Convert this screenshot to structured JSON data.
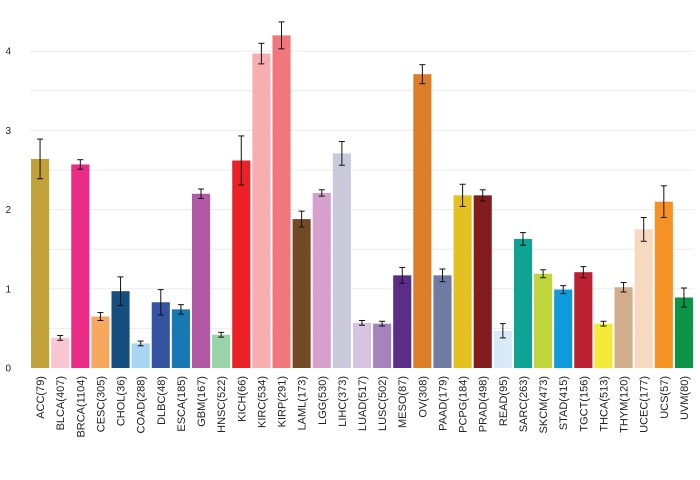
{
  "chart_data": {
    "type": "bar",
    "title": "",
    "xlabel": "",
    "ylabel": "",
    "ylim": [
      0,
      4.4
    ],
    "yticks": [
      0,
      1,
      2,
      3,
      4
    ],
    "grid": true,
    "legend": "none",
    "categories": [
      "ACC(79)",
      "BLCA(407)",
      "BRCA(1104)",
      "CESC(305)",
      "CHOL(36)",
      "COAD(288)",
      "DLBC(48)",
      "ESCA(185)",
      "GBM(167)",
      "HNSC(522)",
      "KICH(66)",
      "KIRC(534)",
      "KIRP(291)",
      "LAML(173)",
      "LGG(530)",
      "LIHC(373)",
      "LUAD(517)",
      "LUSC(502)",
      "MESO(87)",
      "OV(308)",
      "PAAD(179)",
      "PCPG(184)",
      "PRAD(498)",
      "READ(95)",
      "SARC(263)",
      "SKCM(473)",
      "STAD(415)",
      "TGCT(156)",
      "THCA(513)",
      "THYM(120)",
      "UCEC(177)",
      "UCS(57)",
      "UVM(80)"
    ],
    "values": [
      2.64,
      0.38,
      2.57,
      0.65,
      0.97,
      0.31,
      0.83,
      0.74,
      2.2,
      0.42,
      2.62,
      3.97,
      4.2,
      1.88,
      2.21,
      2.71,
      0.57,
      0.56,
      1.17,
      3.71,
      1.17,
      2.18,
      2.18,
      0.47,
      1.63,
      1.19,
      0.99,
      1.21,
      0.56,
      1.02,
      1.75,
      2.1,
      0.89
    ],
    "errors": [
      0.25,
      0.03,
      0.06,
      0.05,
      0.18,
      0.03,
      0.16,
      0.06,
      0.06,
      0.03,
      0.31,
      0.13,
      0.17,
      0.1,
      0.04,
      0.15,
      0.03,
      0.03,
      0.1,
      0.12,
      0.08,
      0.14,
      0.07,
      0.09,
      0.08,
      0.05,
      0.05,
      0.07,
      0.03,
      0.06,
      0.15,
      0.2,
      0.12
    ],
    "colors": [
      "#C1A23A",
      "#F9C7D4",
      "#EA2C86",
      "#F6A95E",
      "#154F80",
      "#A7D5F2",
      "#3453A1",
      "#1778B4",
      "#B459A6",
      "#99D3A8",
      "#EC2027",
      "#F6AEB0",
      "#F0787C",
      "#734A26",
      "#D5A0CC",
      "#C8CADB",
      "#D6C3DF",
      "#A783BD",
      "#5A2D88",
      "#DC7D28",
      "#6F7BA3",
      "#E4C021",
      "#821C1E",
      "#D8EAF8",
      "#0EA393",
      "#BED63A",
      "#0F9ADD",
      "#BD2031",
      "#F3EB37",
      "#D2AE8D",
      "#F7D9BF",
      "#F69223",
      "#0B9448"
    ]
  }
}
